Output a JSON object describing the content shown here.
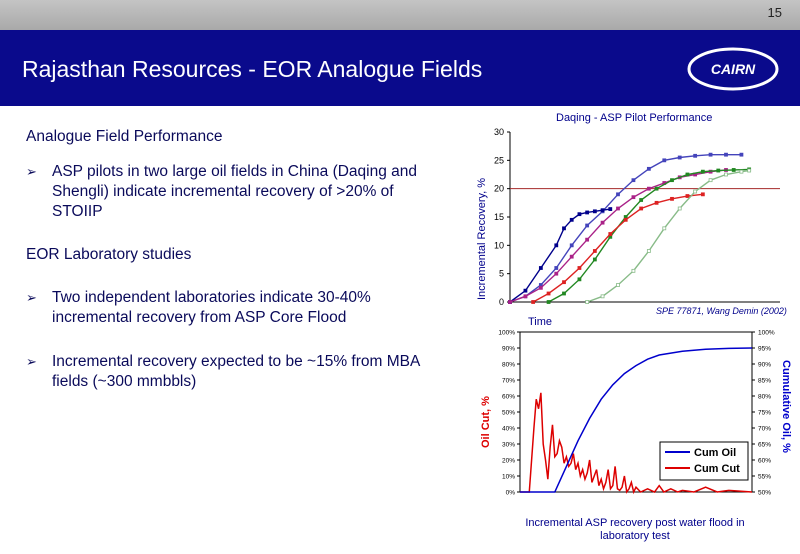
{
  "page_number": "15",
  "title": "Rajasthan Resources - EOR Analogue Fields",
  "logo_text": "CAIRN",
  "content": {
    "heading1": "Analogue Field Performance",
    "bullet1": "ASP pilots in two large oil fields in China (Daqing and Shengli) indicate incremental recovery of >20% of STOIIP",
    "heading2": "EOR Laboratory studies",
    "bullet2": "Two independent laboratories indicate 30-40% incremental recovery from ASP Core Flood",
    "bullet3": "Incremental recovery expected to be ~15% from MBA fields (~300 mmbbls)"
  },
  "colors": {
    "brand": "#0a0a8c",
    "text": "#0a0a5a",
    "red": "#dd0000",
    "blue": "#0000cc"
  },
  "chart_data": [
    {
      "type": "line",
      "title": "Daqing - ASP Pilot Performance",
      "xlabel": "Time",
      "ylabel": "Incremental Recovery, %",
      "ylim": [
        0,
        30
      ],
      "yticks": [
        "0",
        "5",
        "10",
        "15",
        "20",
        "25",
        "30"
      ],
      "reference_line": 20,
      "annotation": "SPE 77871, Wang Demin (2002)",
      "series": [
        {
          "color": "#4444bb",
          "x": [
            0,
            4,
            8,
            12,
            16,
            20,
            24,
            28,
            32,
            36,
            40,
            44,
            48,
            52,
            56,
            60
          ],
          "values": [
            0,
            1,
            3,
            6,
            10,
            13.5,
            16,
            19,
            21.5,
            23.5,
            25,
            25.5,
            25.8,
            26,
            26,
            26
          ]
        },
        {
          "color": "#00008b",
          "x": [
            0,
            4,
            8,
            12,
            14,
            16,
            18,
            20,
            22,
            24,
            26
          ],
          "values": [
            0,
            2,
            6,
            10,
            13,
            14.5,
            15.5,
            15.8,
            16,
            16.2,
            16.4
          ]
        },
        {
          "color": "#aa2288",
          "x": [
            0,
            4,
            8,
            12,
            16,
            20,
            24,
            28,
            32,
            36,
            40,
            44,
            48,
            52,
            56
          ],
          "values": [
            0,
            1,
            2.5,
            5,
            8,
            11,
            14,
            16.5,
            18.5,
            20,
            21,
            22,
            22.5,
            23,
            23.3
          ]
        },
        {
          "color": "#228822",
          "x": [
            10,
            14,
            18,
            22,
            26,
            30,
            34,
            38,
            42,
            46,
            50,
            54,
            58,
            62
          ],
          "values": [
            0,
            1.5,
            4,
            7.5,
            11.5,
            15,
            18,
            20,
            21.5,
            22.5,
            23,
            23.2,
            23.3,
            23.4
          ]
        },
        {
          "color": "#dd2222",
          "x": [
            6,
            10,
            14,
            18,
            22,
            26,
            30,
            34,
            38,
            42,
            46,
            50
          ],
          "values": [
            0,
            1.5,
            3.5,
            6,
            9,
            12,
            14.5,
            16.5,
            17.5,
            18.2,
            18.7,
            19
          ]
        },
        {
          "color": "#88bb88",
          "x": [
            20,
            24,
            28,
            32,
            36,
            40,
            44,
            48,
            52,
            56,
            60,
            62
          ],
          "values": [
            0,
            1,
            3,
            5.5,
            9,
            13,
            16.5,
            19.5,
            21.5,
            22.5,
            23,
            23.2
          ]
        }
      ]
    },
    {
      "type": "line",
      "caption": "Incremental ASP recovery post water flood in laboratory test",
      "ylabel_left": "Oil Cut, %",
      "ylabel_right": "Cumulative Oil, %",
      "left_ticks": [
        "0%",
        "10%",
        "20%",
        "30%",
        "40%",
        "50%",
        "60%",
        "70%",
        "80%",
        "90%",
        "100%"
      ],
      "right_ticks": [
        "50%",
        "55%",
        "60%",
        "65%",
        "70%",
        "75%",
        "80%",
        "85%",
        "90%",
        "95%",
        "100%"
      ],
      "legend": [
        {
          "name": "Cum Oil",
          "color": "#0000cc"
        },
        {
          "name": "Cum Cut",
          "color": "#dd0000"
        }
      ],
      "series": [
        {
          "name": "Cum Oil",
          "axis": "right",
          "x": [
            0,
            10,
            15,
            20,
            25,
            30,
            35,
            40,
            45,
            50,
            55,
            60,
            70,
            80,
            90,
            100
          ],
          "values": [
            50,
            50,
            50,
            58,
            66,
            73,
            79,
            83.5,
            87,
            89.5,
            91.5,
            92.8,
            94,
            94.6,
            94.9,
            95
          ]
        },
        {
          "name": "Cum Cut",
          "axis": "left",
          "x": [
            0,
            4,
            6,
            7,
            8,
            9,
            10,
            11,
            12,
            13,
            14,
            15,
            16,
            17,
            18,
            19,
            20,
            21,
            22,
            23,
            24,
            25,
            26,
            27,
            28,
            29,
            30,
            31,
            32,
            33,
            34,
            35,
            36,
            37,
            38,
            39,
            40,
            41,
            42,
            43,
            44,
            45,
            46,
            47,
            48,
            49,
            50,
            52,
            55,
            58,
            60,
            62,
            65,
            68,
            70,
            75,
            80,
            85,
            90,
            100
          ],
          "values": [
            0,
            0,
            40,
            58,
            52,
            62,
            30,
            20,
            8,
            28,
            42,
            22,
            24,
            32,
            28,
            18,
            22,
            16,
            18,
            24,
            14,
            18,
            10,
            14,
            8,
            12,
            20,
            6,
            10,
            14,
            4,
            8,
            2,
            6,
            14,
            2,
            4,
            16,
            2,
            1,
            3,
            10,
            0,
            2,
            6,
            0,
            3,
            0,
            2,
            0,
            4,
            0,
            2,
            0,
            1,
            0,
            3,
            0,
            1,
            0
          ]
        }
      ]
    }
  ]
}
